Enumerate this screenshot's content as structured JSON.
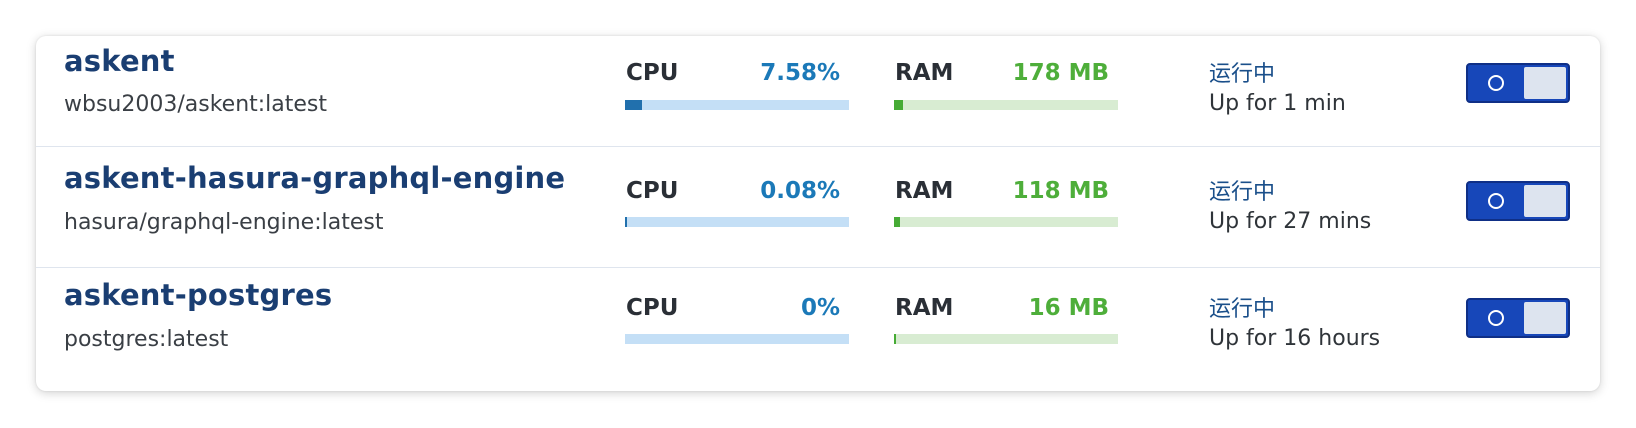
{
  "containers": [
    {
      "name": "askent",
      "image": "wbsu2003/askent:latest",
      "cpu_label": "CPU",
      "cpu_value": "7.58%",
      "cpu_fill": 0.0758,
      "ram_label": "RAM",
      "ram_value": "178 MB",
      "ram_fill": 0.04,
      "status": "运行中",
      "uptime": "Up for 1 min",
      "running": true
    },
    {
      "name": "askent-hasura-graphql-engine",
      "image": "hasura/graphql-engine:latest",
      "cpu_label": "CPU",
      "cpu_value": "0.08%",
      "cpu_fill": 0.0008,
      "ram_label": "RAM",
      "ram_value": "118 MB",
      "ram_fill": 0.027,
      "status": "运行中",
      "uptime": "Up for 27 mins",
      "running": true
    },
    {
      "name": "askent-postgres",
      "image": "postgres:latest",
      "cpu_label": "CPU",
      "cpu_value": "0%",
      "cpu_fill": 0,
      "ram_label": "RAM",
      "ram_value": "16 MB",
      "ram_fill": 0.004,
      "status": "运行中",
      "uptime": "Up for 16 hours",
      "running": true
    }
  ],
  "colors": {
    "name": "#1a3e72",
    "cpu_accent": "#1b79b8",
    "ram_accent": "#4eae3a",
    "toggle_on": "#1747b9"
  },
  "icons": {
    "toggle_on": "toggle-on-circle-icon"
  }
}
